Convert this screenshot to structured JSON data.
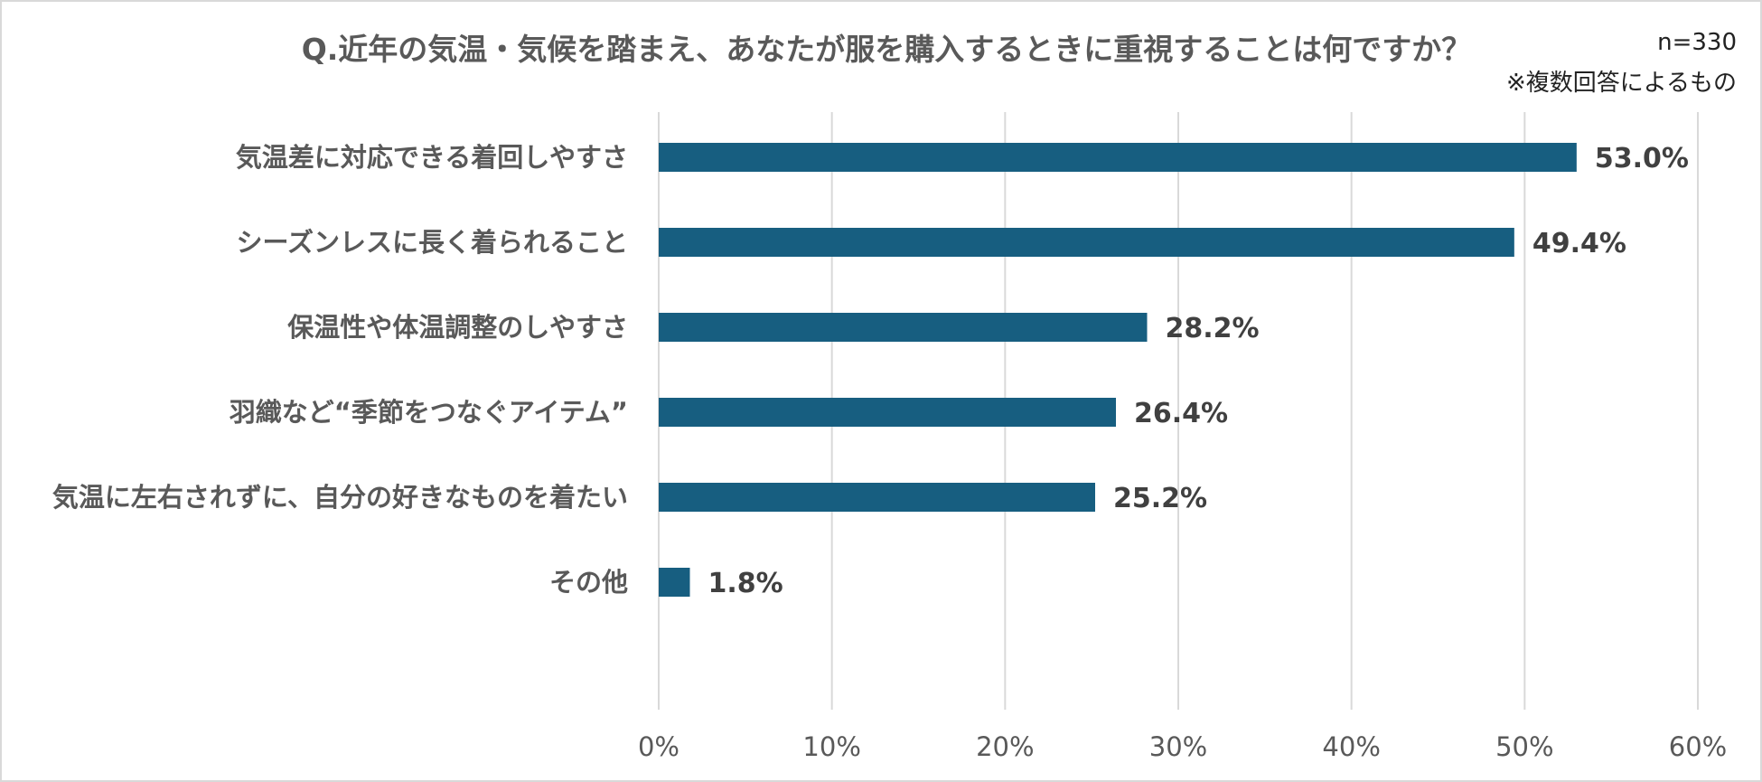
{
  "chart_data": {
    "type": "bar",
    "orientation": "horizontal",
    "title": "Q.近年の気温・気候を踏まえ、あなたが服を購入するときに重視することは何ですか？",
    "sample_size": "n=330",
    "note": "※複数回答によるもの",
    "categories": [
      "気温差に対応できる着回しやすさ",
      "シーズンレスに長く着られること",
      "保温性や体温調整のしやすさ",
      "羽織など“季節をつなぐアイテム”",
      "気温に左右されずに、自分の好きなものを着たい",
      "その他"
    ],
    "values": [
      53.0,
      49.4,
      28.2,
      26.4,
      25.2,
      1.8
    ],
    "value_labels": [
      "53.0%",
      "49.4%",
      "28.2%",
      "26.4%",
      "25.2%",
      "1.8%"
    ],
    "xlim": [
      0,
      60
    ],
    "xticks": [
      0,
      10,
      20,
      30,
      40,
      50,
      60
    ],
    "xtick_labels": [
      "0%",
      "10%",
      "20%",
      "30%",
      "40%",
      "50%",
      "60%"
    ],
    "grid": true,
    "bar_color": "#175e80"
  }
}
